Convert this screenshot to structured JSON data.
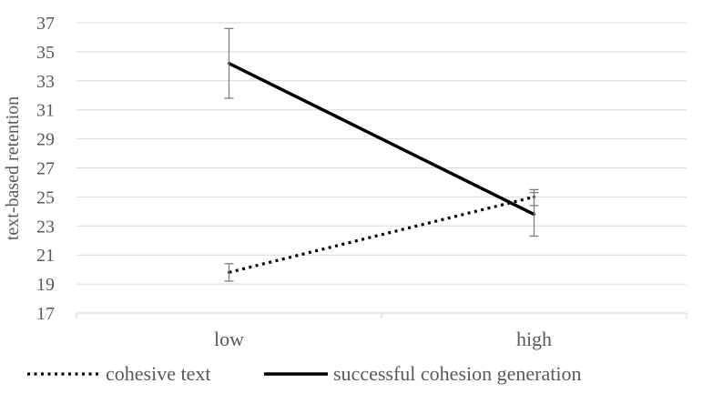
{
  "chart_data": {
    "type": "line",
    "categories": [
      "low",
      "high"
    ],
    "ylabel": "text-based retention",
    "xlabel": "",
    "title": "",
    "ylim": [
      17,
      37
    ],
    "yticks": [
      17,
      19,
      21,
      23,
      25,
      27,
      29,
      31,
      33,
      35,
      37
    ],
    "grid": true,
    "legend_position": "bottom",
    "series": [
      {
        "name": "cohesive text",
        "style": "dotted",
        "color": "#000000",
        "values": [
          19.8,
          25.0
        ],
        "error_low": [
          19.2,
          24.4
        ],
        "error_high": [
          20.4,
          25.5
        ]
      },
      {
        "name": "successful cohesion generation",
        "style": "solid",
        "color": "#000000",
        "values": [
          34.2,
          23.8
        ],
        "error_low": [
          31.8,
          22.3
        ],
        "error_high": [
          36.6,
          25.3
        ]
      }
    ]
  }
}
